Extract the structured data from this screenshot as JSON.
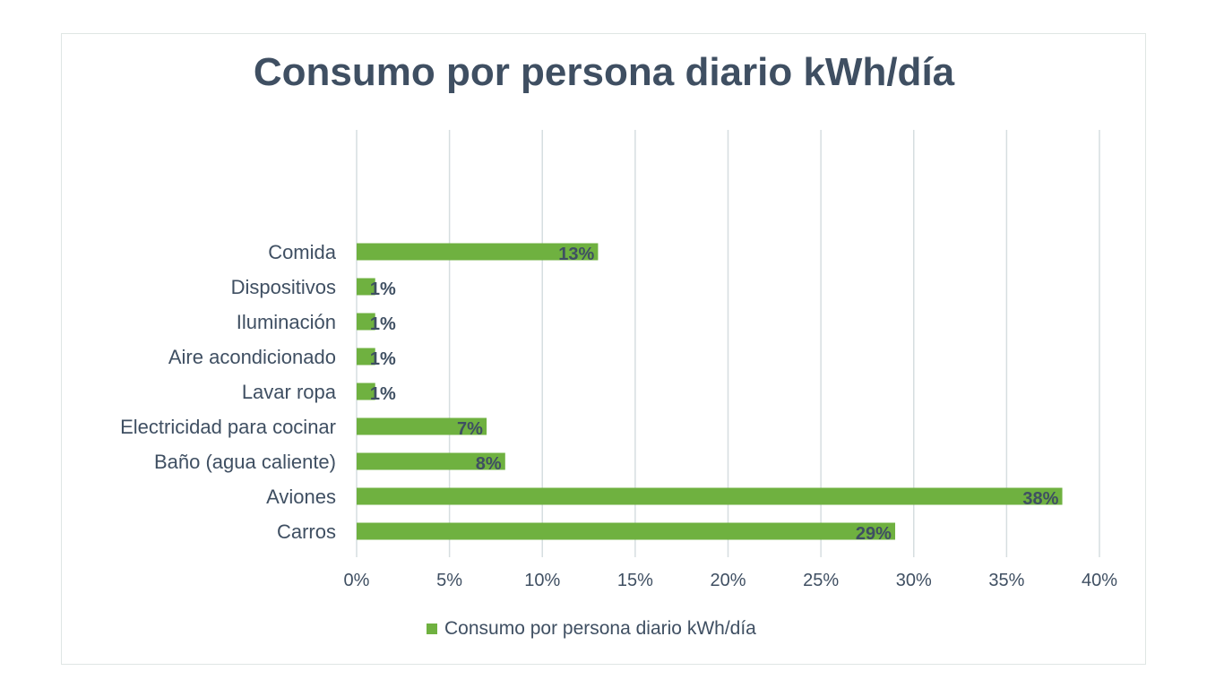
{
  "chart_data": {
    "type": "bar",
    "orientation": "horizontal",
    "title": "Consumo por persona diario kWh/día",
    "categories": [
      "Comida",
      "Dispositivos",
      "Iluminación",
      "Aire acondicionado",
      "Lavar ropa",
      "Electricidad para cocinar",
      "Baño (agua caliente)",
      "Aviones",
      "Carros"
    ],
    "series": [
      {
        "name": "Consumo por persona diario kWh/día",
        "values": [
          13,
          1,
          1,
          1,
          1,
          7,
          8,
          38,
          29
        ],
        "data_labels": [
          "13%",
          "1%",
          "1%",
          "1%",
          "1%",
          "7%",
          "8%",
          "38%",
          "29%"
        ],
        "color": "#6fb140"
      }
    ],
    "xlim": [
      0,
      40
    ],
    "xticks": [
      0,
      5,
      10,
      15,
      20,
      25,
      30,
      35,
      40
    ],
    "xtick_labels": [
      "0%",
      "5%",
      "10%",
      "15%",
      "20%",
      "25%",
      "30%",
      "35%",
      "40%"
    ],
    "grid": true,
    "legend_position": "bottom",
    "colors": {
      "bar": "#6fb140",
      "grid": "#d6dee0",
      "text": "#3f4f62",
      "label": "#3f4f62"
    }
  }
}
